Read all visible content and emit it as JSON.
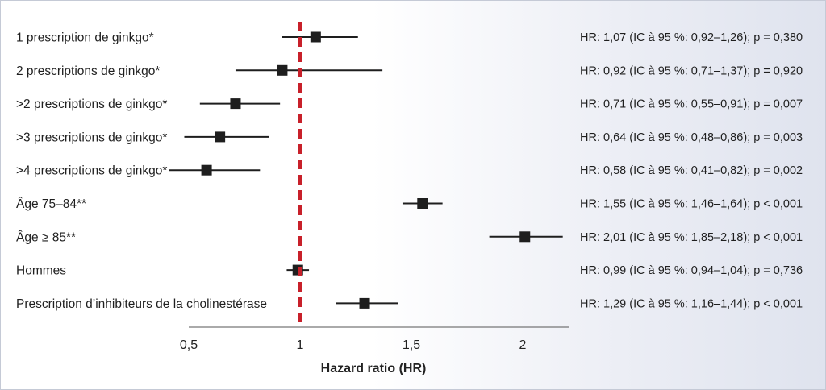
{
  "chart_data": {
    "type": "forest",
    "xlabel": "Hazard ratio (HR)",
    "xlim": [
      0.5,
      2.2
    ],
    "xticks": [
      {
        "value": 0.5,
        "label": "0,5"
      },
      {
        "value": 1,
        "label": "1"
      },
      {
        "value": 1.5,
        "label": "1,5"
      },
      {
        "value": 2,
        "label": "2"
      }
    ],
    "reference_line": {
      "value": 1,
      "color": "#c8202a",
      "style": "dashed"
    },
    "marker_color": "#1e1e1e",
    "rows": [
      {
        "label": "1 prescription de ginkgo*",
        "hr": 1.07,
        "ci": [
          0.92,
          1.26
        ],
        "stat": "HR: 1,07 (IC à 95 %: 0,92–1,26); p = 0,380"
      },
      {
        "label": "2 prescriptions de ginkgo*",
        "hr": 0.92,
        "ci": [
          0.71,
          1.37
        ],
        "stat": "HR: 0,92 (IC à 95 %: 0,71–1,37); p = 0,920"
      },
      {
        "label": ">2 prescriptions de ginkgo*",
        "hr": 0.71,
        "ci": [
          0.55,
          0.91
        ],
        "stat": "HR: 0,71 (IC à 95 %: 0,55–0,91); p = 0,007"
      },
      {
        "label": ">3 prescriptions de ginkgo*",
        "hr": 0.64,
        "ci": [
          0.48,
          0.86
        ],
        "stat": "HR: 0,64 (IC à 95 %: 0,48–0,86); p = 0,003"
      },
      {
        "label": ">4 prescriptions de ginkgo*",
        "hr": 0.58,
        "ci": [
          0.41,
          0.82
        ],
        "stat": "HR: 0,58 (IC à 95 %: 0,41–0,82); p = 0,002"
      },
      {
        "label": "Âge 75–84**",
        "hr": 1.55,
        "ci": [
          1.46,
          1.64
        ],
        "stat": "HR: 1,55 (IC à 95 %: 1,46–1,64); p < 0,001"
      },
      {
        "label": "Âge ≥ 85**",
        "hr": 2.01,
        "ci": [
          1.85,
          2.18
        ],
        "stat": "HR: 2,01 (IC à 95 %: 1,85–2,18); p < 0,001"
      },
      {
        "label": "Hommes",
        "hr": 0.99,
        "ci": [
          0.94,
          1.04
        ],
        "stat": "HR: 0,99 (IC à 95 %: 0,94–1,04); p = 0,736"
      },
      {
        "label": "Prescription d’inhibiteurs de la cholinestérase",
        "hr": 1.29,
        "ci": [
          1.16,
          1.44
        ],
        "stat": "HR: 1,29 (IC à 95 %: 1,16–1,44); p < 0,001"
      }
    ]
  }
}
